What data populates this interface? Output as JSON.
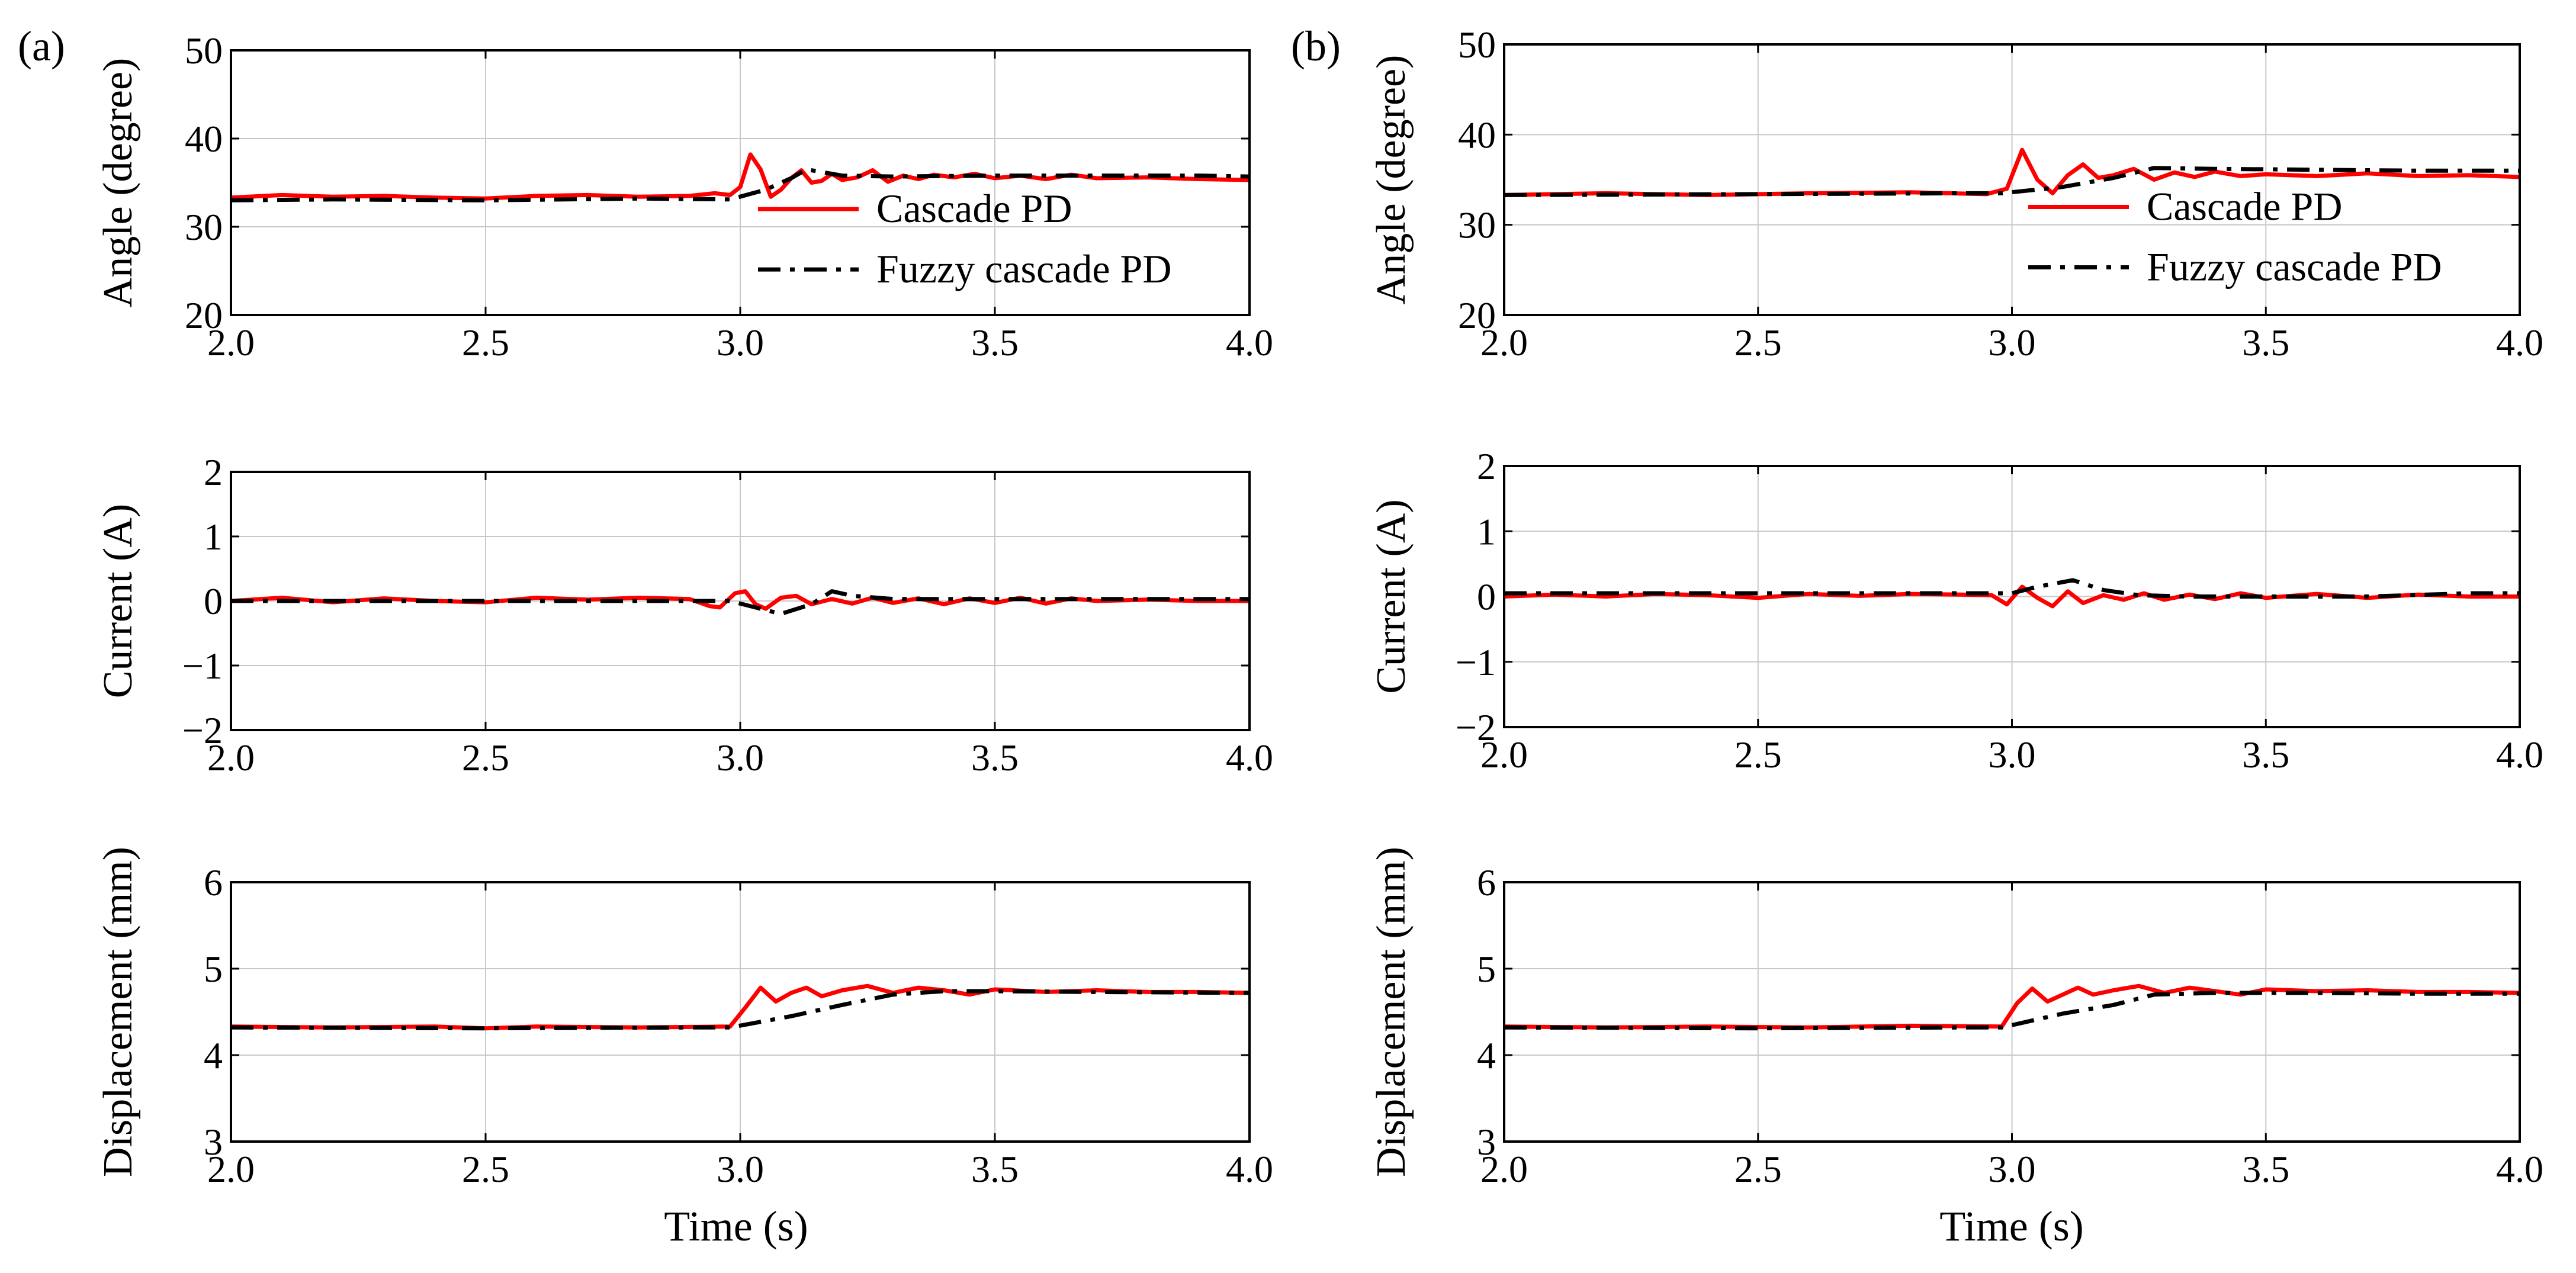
{
  "colors": {
    "cascade": "#ff0000",
    "fuzzy": "#000000",
    "grid": "#c8c8c8",
    "axis": "#000000"
  },
  "panels": [
    {
      "label": "(a)",
      "xlabel": "Time (s)"
    },
    {
      "label": "(b)",
      "xlabel": "Time (s)"
    }
  ],
  "legend": {
    "cascade_label": "Cascade PD",
    "fuzzy_label": "Fuzzy cascade PD"
  },
  "chart_data": [
    {
      "type": "line",
      "panel": "(a)",
      "ylabel": "Angle (degree)",
      "xlabel": "",
      "xlim": [
        2.0,
        4.0
      ],
      "ylim": [
        20,
        50
      ],
      "yticks": [
        20,
        30,
        40,
        50
      ],
      "grid": true,
      "legend": true,
      "legend_position": "bottom-right",
      "series": [
        {
          "name": "Cascade PD",
          "style": "solid",
          "x": [
            2.0,
            2.1,
            2.2,
            2.3,
            2.4,
            2.5,
            2.6,
            2.7,
            2.8,
            2.9,
            2.95,
            2.98,
            3.0,
            3.02,
            3.04,
            3.06,
            3.08,
            3.1,
            3.12,
            3.14,
            3.16,
            3.18,
            3.2,
            3.23,
            3.26,
            3.29,
            3.32,
            3.35,
            3.38,
            3.42,
            3.46,
            3.5,
            3.55,
            3.6,
            3.65,
            3.7,
            3.8,
            3.9,
            4.0
          ],
          "y": [
            33.3,
            33.6,
            33.4,
            33.5,
            33.3,
            33.2,
            33.5,
            33.6,
            33.4,
            33.5,
            33.8,
            33.6,
            34.5,
            38.2,
            36.5,
            33.4,
            34.2,
            35.5,
            36.4,
            35.0,
            35.2,
            36.0,
            35.3,
            35.6,
            36.4,
            35.1,
            35.8,
            35.4,
            35.9,
            35.6,
            36.0,
            35.5,
            35.8,
            35.4,
            35.9,
            35.5,
            35.6,
            35.4,
            35.3
          ]
        },
        {
          "name": "Fuzzy cascade PD",
          "style": "dashdot",
          "x": [
            2.0,
            2.2,
            2.5,
            2.8,
            2.98,
            3.05,
            3.1,
            3.13,
            3.16,
            3.2,
            3.3,
            3.5,
            3.7,
            3.9,
            4.0
          ],
          "y": [
            33.0,
            33.1,
            33.0,
            33.2,
            33.1,
            34.2,
            35.5,
            36.5,
            36.2,
            35.8,
            35.7,
            35.8,
            35.8,
            35.8,
            35.7
          ]
        }
      ]
    },
    {
      "type": "line",
      "panel": "(a)",
      "ylabel": "Current (A)",
      "xlabel": "",
      "xlim": [
        2.0,
        4.0
      ],
      "ylim": [
        -2,
        2
      ],
      "yticks": [
        -2,
        -1,
        0,
        1,
        2
      ],
      "grid": true,
      "legend": false,
      "series": [
        {
          "name": "Cascade PD",
          "style": "solid",
          "x": [
            2.0,
            2.1,
            2.2,
            2.3,
            2.4,
            2.5,
            2.6,
            2.7,
            2.8,
            2.9,
            2.94,
            2.96,
            2.99,
            3.01,
            3.03,
            3.05,
            3.08,
            3.11,
            3.14,
            3.18,
            3.22,
            3.26,
            3.3,
            3.35,
            3.4,
            3.45,
            3.5,
            3.55,
            3.6,
            3.65,
            3.7,
            3.8,
            3.9,
            4.0
          ],
          "y": [
            0.0,
            0.05,
            -0.02,
            0.04,
            0.0,
            -0.02,
            0.05,
            0.02,
            0.05,
            0.03,
            -0.08,
            -0.1,
            0.12,
            0.15,
            -0.05,
            -0.12,
            0.05,
            0.08,
            -0.05,
            0.03,
            -0.04,
            0.05,
            -0.03,
            0.04,
            -0.05,
            0.04,
            -0.03,
            0.05,
            -0.04,
            0.04,
            0.0,
            0.02,
            0.0,
            0.0
          ]
        },
        {
          "name": "Fuzzy cascade PD",
          "style": "dashdot",
          "x": [
            2.0,
            2.5,
            2.9,
            2.98,
            3.03,
            3.08,
            3.14,
            3.18,
            3.22,
            3.3,
            3.5,
            3.8,
            4.0
          ],
          "y": [
            0.0,
            0.0,
            0.0,
            0.0,
            -0.1,
            -0.2,
            -0.05,
            0.15,
            0.08,
            0.03,
            0.03,
            0.03,
            0.03
          ]
        }
      ]
    },
    {
      "type": "line",
      "panel": "(a)",
      "ylabel": "Displacement (mm)",
      "xlabel": "Time (s)",
      "xlim": [
        2.0,
        4.0
      ],
      "ylim": [
        3,
        6
      ],
      "yticks": [
        3,
        4,
        5,
        6
      ],
      "grid": true,
      "legend": false,
      "series": [
        {
          "name": "Cascade PD",
          "style": "solid",
          "x": [
            2.0,
            2.2,
            2.4,
            2.5,
            2.6,
            2.8,
            2.98,
            3.01,
            3.04,
            3.07,
            3.1,
            3.13,
            3.16,
            3.2,
            3.25,
            3.3,
            3.35,
            3.4,
            3.45,
            3.5,
            3.6,
            3.7,
            3.8,
            3.9,
            4.0
          ],
          "y": [
            4.33,
            4.32,
            4.33,
            4.31,
            4.33,
            4.32,
            4.33,
            4.55,
            4.78,
            4.62,
            4.72,
            4.78,
            4.68,
            4.75,
            4.8,
            4.72,
            4.78,
            4.75,
            4.7,
            4.76,
            4.73,
            4.75,
            4.73,
            4.73,
            4.72
          ]
        },
        {
          "name": "Fuzzy cascade PD",
          "style": "dashdot",
          "x": [
            2.0,
            2.5,
            2.9,
            2.98,
            3.1,
            3.2,
            3.3,
            3.4,
            3.5,
            3.7,
            4.0
          ],
          "y": [
            4.32,
            4.31,
            4.32,
            4.32,
            4.45,
            4.58,
            4.7,
            4.74,
            4.74,
            4.73,
            4.72
          ]
        }
      ]
    },
    {
      "type": "line",
      "panel": "(b)",
      "ylabel": "Angle (degree)",
      "xlabel": "",
      "xlim": [
        2.0,
        4.0
      ],
      "ylim": [
        20,
        50
      ],
      "yticks": [
        20,
        30,
        40,
        50
      ],
      "grid": true,
      "legend": true,
      "legend_position": "bottom-right",
      "series": [
        {
          "name": "Cascade PD",
          "style": "solid",
          "x": [
            2.0,
            2.2,
            2.4,
            2.6,
            2.8,
            2.95,
            2.99,
            3.02,
            3.05,
            3.08,
            3.11,
            3.14,
            3.17,
            3.2,
            3.24,
            3.28,
            3.32,
            3.36,
            3.4,
            3.45,
            3.5,
            3.6,
            3.7,
            3.8,
            3.9,
            4.0
          ],
          "y": [
            33.3,
            33.5,
            33.3,
            33.5,
            33.6,
            33.4,
            34.0,
            38.3,
            35.0,
            33.5,
            35.5,
            36.7,
            35.2,
            35.5,
            36.2,
            35.0,
            35.8,
            35.3,
            35.9,
            35.4,
            35.6,
            35.4,
            35.7,
            35.4,
            35.5,
            35.3
          ]
        },
        {
          "name": "Fuzzy cascade PD",
          "style": "dashdot",
          "x": [
            2.0,
            2.5,
            2.9,
            2.98,
            3.1,
            3.2,
            3.28,
            3.4,
            3.6,
            3.8,
            4.0
          ],
          "y": [
            33.3,
            33.4,
            33.5,
            33.5,
            34.2,
            35.2,
            36.3,
            36.2,
            36.1,
            36.0,
            36.0
          ]
        }
      ]
    },
    {
      "type": "line",
      "panel": "(b)",
      "ylabel": "Current (A)",
      "xlabel": "",
      "xlim": [
        2.0,
        4.0
      ],
      "ylim": [
        -2,
        2
      ],
      "yticks": [
        -2,
        -1,
        0,
        1,
        2
      ],
      "grid": true,
      "legend": false,
      "series": [
        {
          "name": "Cascade PD",
          "style": "solid",
          "x": [
            2.0,
            2.1,
            2.2,
            2.3,
            2.4,
            2.5,
            2.6,
            2.7,
            2.8,
            2.9,
            2.96,
            2.99,
            3.02,
            3.05,
            3.08,
            3.11,
            3.14,
            3.18,
            3.22,
            3.26,
            3.3,
            3.35,
            3.4,
            3.45,
            3.5,
            3.6,
            3.7,
            3.8,
            3.9,
            4.0
          ],
          "y": [
            0.0,
            0.03,
            0.0,
            0.04,
            0.02,
            -0.02,
            0.04,
            0.01,
            0.04,
            0.03,
            0.02,
            -0.12,
            0.15,
            -0.02,
            -0.15,
            0.08,
            -0.1,
            0.02,
            -0.05,
            0.05,
            -0.05,
            0.03,
            -0.04,
            0.05,
            -0.02,
            0.04,
            -0.02,
            0.03,
            0.0,
            0.0
          ]
        },
        {
          "name": "Fuzzy cascade PD",
          "style": "dashdot",
          "x": [
            2.0,
            2.5,
            2.9,
            3.0,
            3.05,
            3.12,
            3.18,
            3.25,
            3.35,
            3.5,
            3.7,
            3.9,
            4.0
          ],
          "y": [
            0.05,
            0.05,
            0.05,
            0.05,
            0.15,
            0.25,
            0.1,
            0.02,
            0.0,
            0.0,
            0.0,
            0.05,
            0.05
          ]
        }
      ]
    },
    {
      "type": "line",
      "panel": "(b)",
      "ylabel": "Displacement (mm)",
      "xlabel": "Time (s)",
      "xlim": [
        2.0,
        4.0
      ],
      "ylim": [
        3,
        6
      ],
      "yticks": [
        3,
        4,
        5,
        6
      ],
      "grid": true,
      "legend": false,
      "series": [
        {
          "name": "Cascade PD",
          "style": "solid",
          "x": [
            2.0,
            2.2,
            2.4,
            2.6,
            2.8,
            2.98,
            3.01,
            3.04,
            3.07,
            3.1,
            3.13,
            3.16,
            3.2,
            3.25,
            3.3,
            3.35,
            3.4,
            3.45,
            3.5,
            3.6,
            3.7,
            3.8,
            3.9,
            4.0
          ],
          "y": [
            4.33,
            4.32,
            4.33,
            4.32,
            4.34,
            4.33,
            4.6,
            4.77,
            4.62,
            4.7,
            4.78,
            4.7,
            4.75,
            4.8,
            4.72,
            4.78,
            4.74,
            4.7,
            4.76,
            4.74,
            4.75,
            4.73,
            4.73,
            4.72
          ]
        },
        {
          "name": "Fuzzy cascade PD",
          "style": "dashdot",
          "x": [
            2.0,
            2.5,
            2.9,
            2.98,
            3.1,
            3.2,
            3.28,
            3.4,
            3.6,
            3.8,
            4.0
          ],
          "y": [
            4.32,
            4.31,
            4.32,
            4.32,
            4.48,
            4.58,
            4.7,
            4.72,
            4.72,
            4.71,
            4.71
          ]
        }
      ]
    }
  ]
}
